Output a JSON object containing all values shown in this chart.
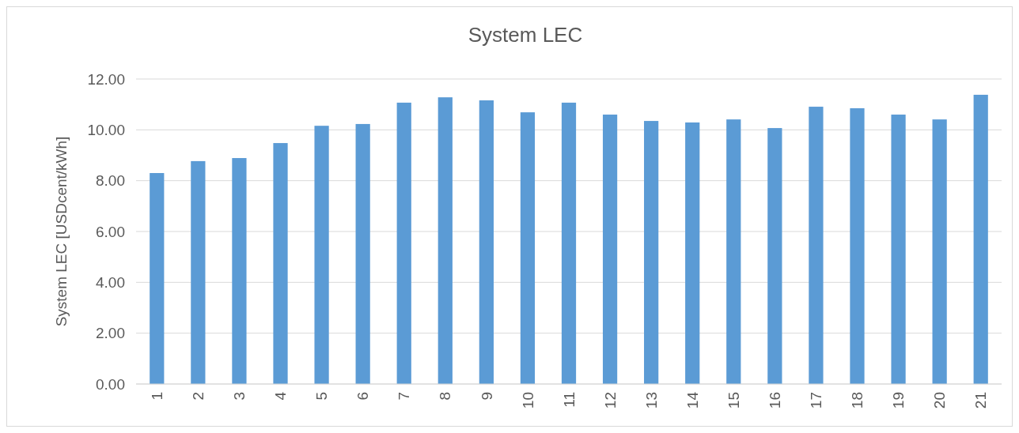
{
  "chart_data": {
    "type": "bar",
    "title": "System LEC",
    "ylabel": "System LEC [USDcent/kWh]",
    "categories": [
      "1",
      "2",
      "3",
      "4",
      "5",
      "6",
      "7",
      "8",
      "9",
      "10",
      "11",
      "12",
      "13",
      "14",
      "15",
      "16",
      "17",
      "18",
      "19",
      "20",
      "21"
    ],
    "values": [
      8.3,
      8.77,
      8.89,
      9.48,
      10.16,
      10.23,
      11.07,
      11.28,
      11.16,
      10.69,
      11.07,
      10.6,
      10.35,
      10.29,
      10.41,
      10.07,
      10.91,
      10.85,
      10.6,
      10.41,
      11.38
    ],
    "color": "#5b9bd5",
    "ylim": [
      0,
      12
    ],
    "yticks": [
      {
        "value": 0,
        "label": "0.00"
      },
      {
        "value": 2,
        "label": "2.00"
      },
      {
        "value": 4,
        "label": "4.00"
      },
      {
        "value": 6,
        "label": "6.00"
      },
      {
        "value": 8,
        "label": "8.00"
      },
      {
        "value": 10,
        "label": "10.00"
      },
      {
        "value": 12,
        "label": "12.00"
      }
    ],
    "grid": "y"
  }
}
